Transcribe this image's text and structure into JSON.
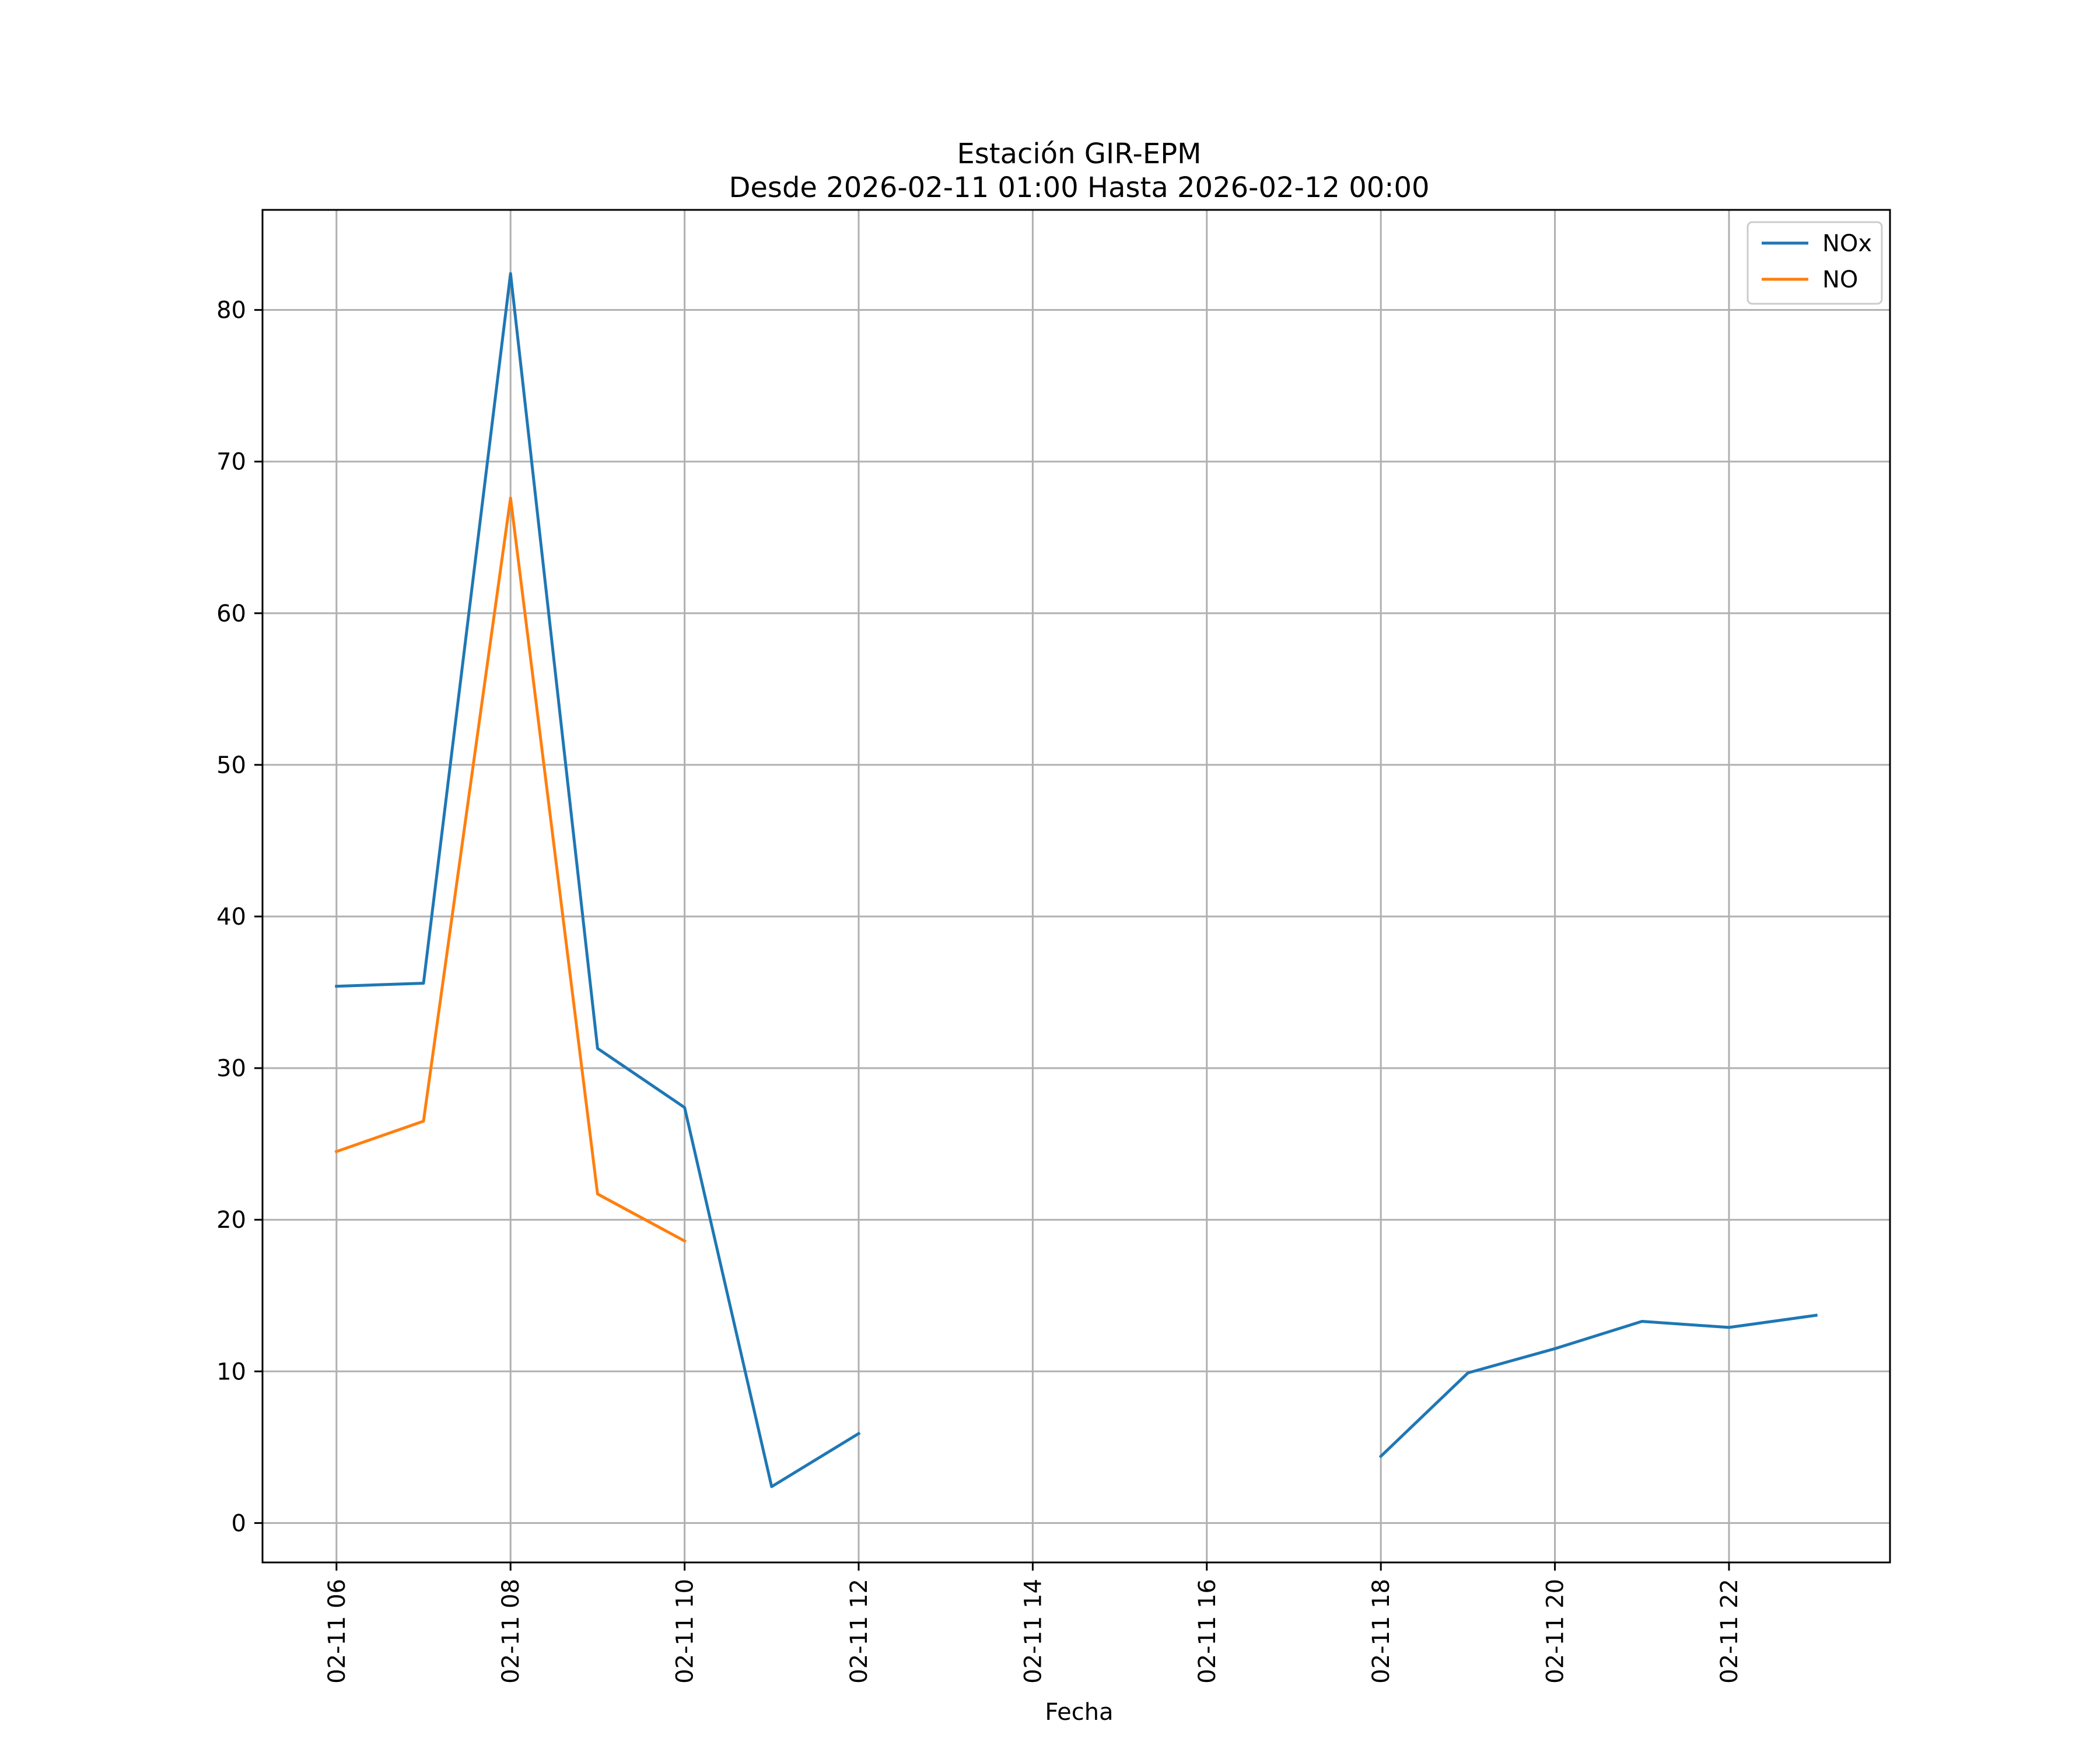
{
  "chart_data": {
    "type": "line",
    "title": "Estación GIR-EPM",
    "subtitle": "Desde 2026-02-11 01:00 Hasta 2026-02-12 00:00",
    "xlabel": "Fecha",
    "ylabel": "",
    "x_unit": "hour of 2026-02-11",
    "xlim": [
      5.15,
      23.85
    ],
    "ylim": [
      -2.6,
      86.6
    ],
    "x_ticks": [
      {
        "value": 6,
        "label": "02-11 06"
      },
      {
        "value": 8,
        "label": "02-11 08"
      },
      {
        "value": 10,
        "label": "02-11 10"
      },
      {
        "value": 12,
        "label": "02-11 12"
      },
      {
        "value": 14,
        "label": "02-11 14"
      },
      {
        "value": 16,
        "label": "02-11 16"
      },
      {
        "value": 18,
        "label": "02-11 18"
      },
      {
        "value": 20,
        "label": "02-11 20"
      },
      {
        "value": 22,
        "label": "02-11 22"
      }
    ],
    "y_ticks": [
      {
        "value": 0,
        "label": "0"
      },
      {
        "value": 10,
        "label": "10"
      },
      {
        "value": 20,
        "label": "20"
      },
      {
        "value": 30,
        "label": "30"
      },
      {
        "value": 40,
        "label": "40"
      },
      {
        "value": 50,
        "label": "50"
      },
      {
        "value": 60,
        "label": "60"
      },
      {
        "value": 70,
        "label": "70"
      },
      {
        "value": 80,
        "label": "80"
      }
    ],
    "grid": true,
    "legend_position": "top-right",
    "series": [
      {
        "name": "NOx",
        "color": "#1f77b4",
        "x": [
          6,
          7,
          8,
          9,
          10,
          11,
          12,
          13,
          14,
          15,
          16,
          17,
          18,
          19,
          20,
          21,
          22,
          23
        ],
        "y": [
          35.4,
          35.6,
          82.4,
          31.3,
          27.4,
          2.4,
          5.9,
          null,
          null,
          null,
          null,
          null,
          4.4,
          9.9,
          11.5,
          13.3,
          12.9,
          13.7
        ]
      },
      {
        "name": "NO",
        "color": "#ff7f0e",
        "x": [
          6,
          7,
          8,
          9,
          10
        ],
        "y": [
          24.5,
          26.5,
          67.6,
          21.7,
          18.6
        ]
      }
    ]
  }
}
